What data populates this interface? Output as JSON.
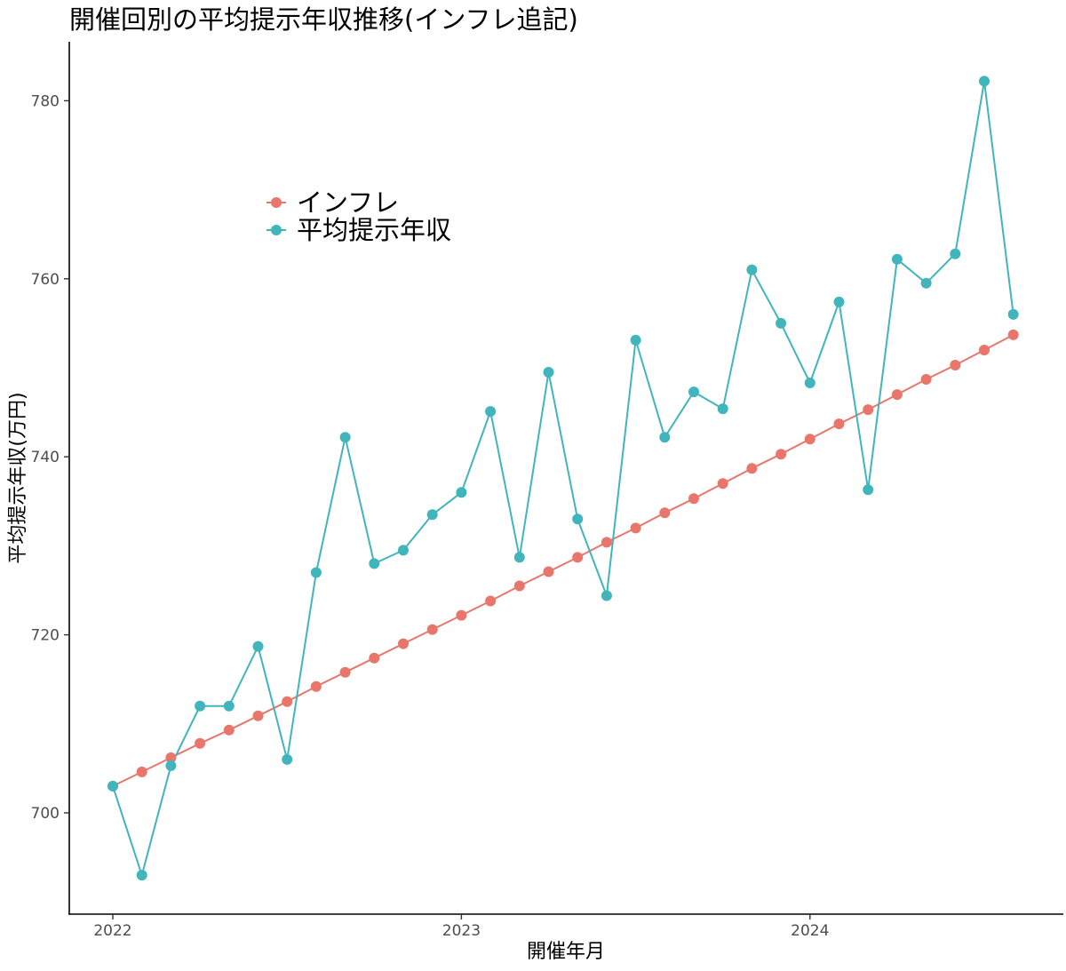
{
  "chart_data": {
    "type": "line",
    "title": "開催回別の平均提示年収推移(インフレ追記)",
    "xlabel": "開催年月",
    "ylabel": "平均提示年収(万円)",
    "x_tick_labels": [
      "2022",
      "2023",
      "2024"
    ],
    "y_tick_labels": [
      "700",
      "720",
      "740",
      "760",
      "780"
    ],
    "ylim": [
      689.5,
      786.5
    ],
    "grid": false,
    "legend_position": "inside-top-left",
    "series": [
      {
        "name": "インフレ",
        "color": "#E8766B",
        "values": [
          703.0,
          704.6,
          706.2,
          707.8,
          709.3,
          710.9,
          712.5,
          714.2,
          715.8,
          717.4,
          719.0,
          720.6,
          722.2,
          723.8,
          725.5,
          727.1,
          728.7,
          730.4,
          732.0,
          733.7,
          735.3,
          737.0,
          738.7,
          740.3,
          742.0,
          743.7,
          745.3,
          747.0,
          748.7,
          750.3,
          752.0,
          753.7
        ]
      },
      {
        "name": "平均提示年収",
        "color": "#40B5BB",
        "values": [
          703.0,
          693.0,
          705.3,
          712.0,
          712.0,
          718.7,
          706.0,
          727.0,
          742.2,
          728.0,
          729.5,
          733.5,
          736.0,
          745.1,
          728.7,
          749.5,
          733.0,
          724.4,
          753.1,
          742.2,
          747.3,
          745.4,
          761.0,
          755.0,
          748.3,
          757.4,
          736.3,
          762.2,
          759.5,
          762.8,
          782.2,
          756.0
        ]
      }
    ]
  }
}
